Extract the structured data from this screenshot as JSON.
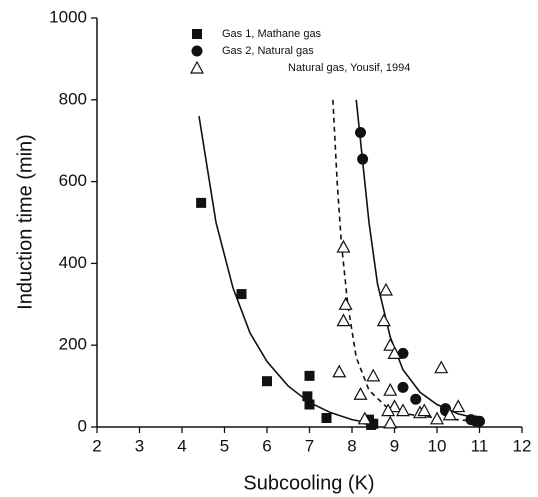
{
  "chart_data": {
    "type": "scatter",
    "xlabel": "Subcooling (K)",
    "ylabel": "Induction time (min)",
    "xlim": [
      2,
      12
    ],
    "ylim": [
      0,
      1000
    ],
    "xticks": [
      2,
      3,
      4,
      5,
      6,
      7,
      8,
      9,
      10,
      11,
      12
    ],
    "yticks": [
      0,
      200,
      400,
      600,
      800,
      1000
    ],
    "legend": "top-left",
    "series": [
      {
        "name": "Gas 1, Mathane gas",
        "marker": "square",
        "color": "#111111",
        "x": [
          4.45,
          5.4,
          6.0,
          7.0,
          6.95,
          7.0,
          7.4,
          8.4,
          8.5,
          8.45
        ],
        "values": [
          548,
          325,
          112,
          125,
          75,
          55,
          22,
          18,
          8,
          5
        ]
      },
      {
        "name": "Gas 2, Natural gas",
        "marker": "circle",
        "color": "#111111",
        "x": [
          8.2,
          8.25,
          9.2,
          9.2,
          9.5,
          10.2,
          10.8,
          10.9,
          11.0,
          10.2
        ],
        "values": [
          720,
          655,
          180,
          97,
          68,
          45,
          18,
          15,
          14,
          40
        ]
      },
      {
        "name": "Natural gas, Yousif, 1994",
        "marker": "triangle",
        "color": "#111111",
        "x": [
          7.8,
          7.85,
          7.8,
          7.7,
          8.2,
          8.5,
          8.3,
          8.8,
          8.75,
          8.9,
          9.0,
          8.9,
          9.0,
          8.85,
          9.2,
          9.6,
          10.1,
          10.5,
          10.0,
          8.9,
          9.7,
          10.3
        ],
        "values": [
          440,
          300,
          260,
          135,
          80,
          125,
          20,
          335,
          260,
          200,
          180,
          90,
          50,
          40,
          40,
          35,
          145,
          50,
          20,
          10,
          40,
          30
        ]
      }
    ],
    "fits": [
      {
        "style": "solid",
        "color": "#111111",
        "x": [
          4.4,
          4.8,
          5.2,
          5.6,
          6.0,
          6.5,
          7.0,
          7.5,
          8.0,
          8.5
        ],
        "values": [
          760,
          500,
          340,
          230,
          160,
          100,
          60,
          35,
          18,
          8
        ]
      },
      {
        "style": "dashed",
        "color": "#111111",
        "x": [
          7.55,
          7.65,
          7.75,
          7.9,
          8.1,
          8.4,
          8.8,
          9.4,
          10.0,
          10.8
        ],
        "values": [
          800,
          600,
          450,
          300,
          170,
          90,
          50,
          30,
          22,
          15
        ]
      },
      {
        "style": "solid",
        "color": "#111111",
        "x": [
          8.1,
          8.2,
          8.4,
          8.6,
          8.9,
          9.2,
          9.6,
          10.0,
          10.5,
          11.0
        ],
        "values": [
          800,
          700,
          500,
          350,
          220,
          140,
          85,
          55,
          32,
          20
        ]
      }
    ]
  }
}
